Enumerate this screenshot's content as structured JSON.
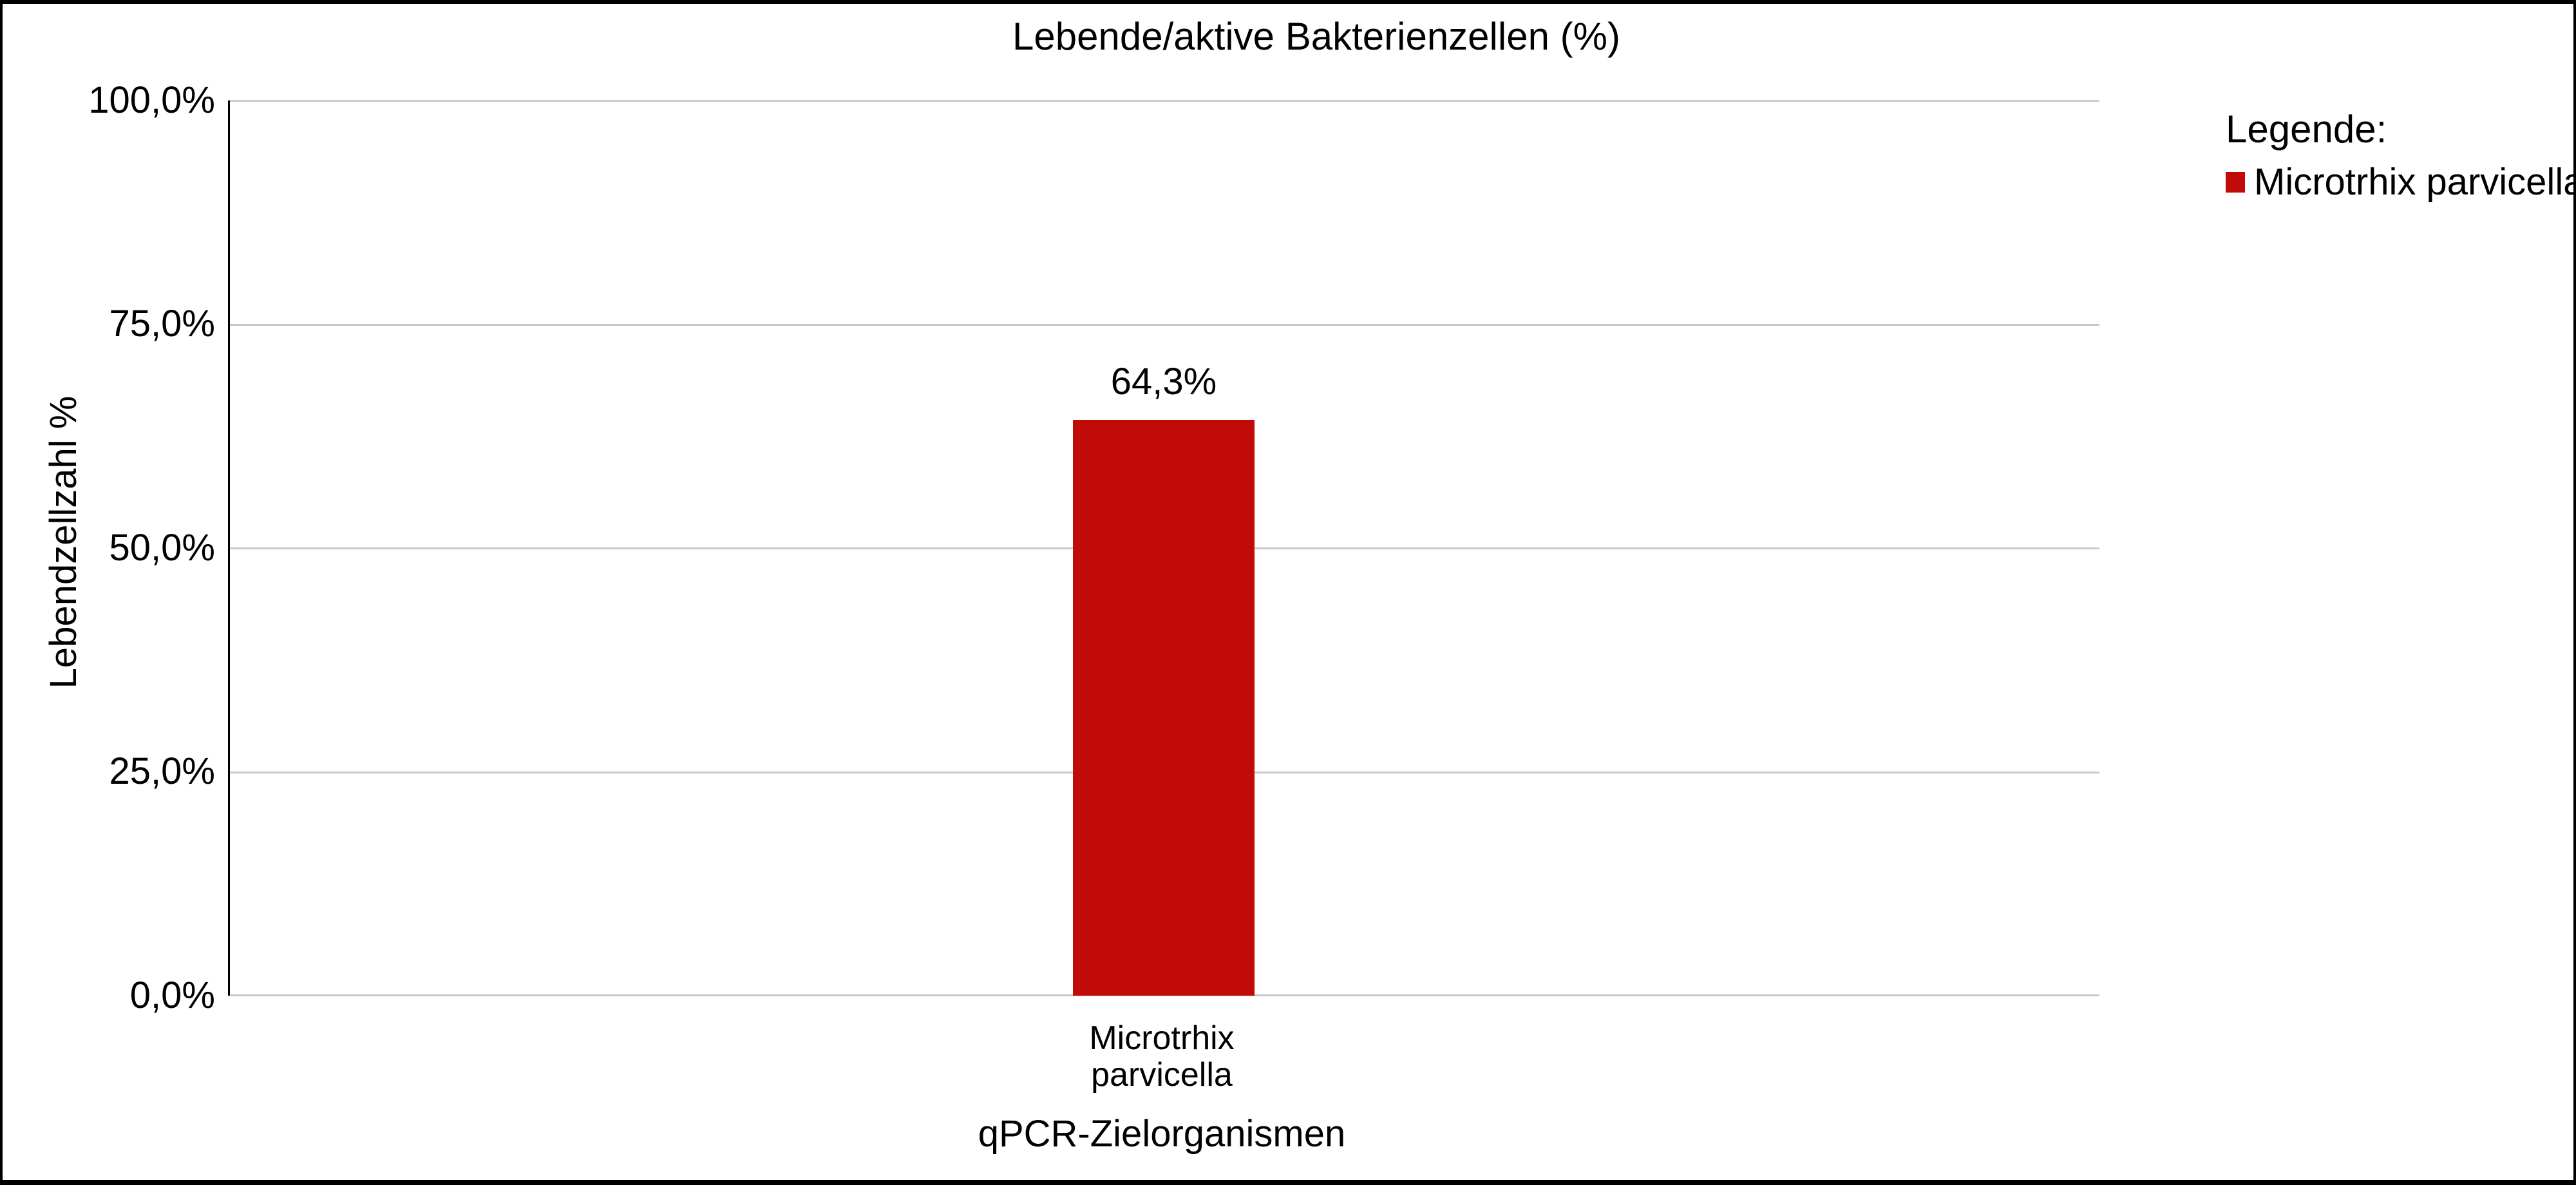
{
  "chart_data": {
    "type": "bar",
    "title": "Lebende/aktive Bakterienzellen (%)",
    "categories": [
      "Microtrhix parvicella"
    ],
    "category_lines": [
      "Microtrhix",
      "parvicella"
    ],
    "values": [
      64.3
    ],
    "value_labels": [
      "64,3%"
    ],
    "xlabel": "qPCR-Zielorganismen",
    "ylabel": "Lebendzellzahl %",
    "ylim": [
      0,
      100
    ],
    "yticks": [
      "0,0%",
      "25,0%",
      "50,0%",
      "75,0%",
      "100,0%"
    ],
    "grid": true,
    "gridline_color": "#c9c9c9",
    "axis_color": "#000000",
    "bar_color": "#c00b09",
    "legend": {
      "header": "Legende:",
      "position": "top-right",
      "entries": [
        {
          "label": "Microtrhix parvicella",
          "color": "#c00b09"
        }
      ]
    }
  }
}
